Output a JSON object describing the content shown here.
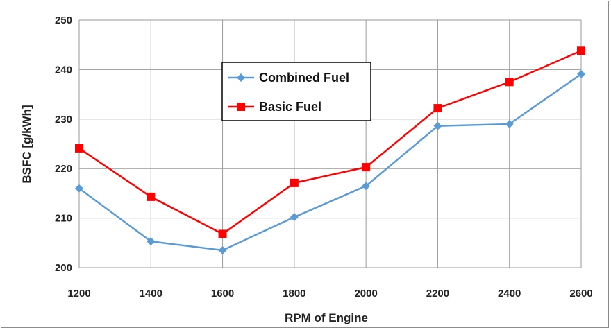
{
  "chart_data": {
    "type": "line",
    "title": "",
    "xlabel": "RPM of Engine",
    "ylabel": "BSFC [g/kWh]",
    "x": [
      1200,
      1400,
      1600,
      1800,
      2000,
      2200,
      2400,
      2600
    ],
    "x_tick_labels": [
      "1200",
      "1400",
      "1600",
      "1800",
      "2000",
      "2200",
      "2400",
      "2600"
    ],
    "xlim": [
      1200,
      2600
    ],
    "ylim": [
      200,
      250
    ],
    "y_ticks": [
      200,
      210,
      220,
      230,
      240,
      250
    ],
    "y_tick_labels": [
      "200",
      "210",
      "220",
      "230",
      "240",
      "250"
    ],
    "grid": true,
    "legend_position": "top-center",
    "series": [
      {
        "name": "Combined Fuel",
        "color": "#5b9bd5",
        "marker": "diamond",
        "values": [
          216,
          205.3,
          203.5,
          210.2,
          216.5,
          228.6,
          229,
          239.1
        ]
      },
      {
        "name": "Basic Fuel",
        "color": "#ff0000",
        "marker": "square",
        "values": [
          224.1,
          214.3,
          206.8,
          217.1,
          220.3,
          232.2,
          237.5,
          243.8
        ]
      }
    ]
  }
}
